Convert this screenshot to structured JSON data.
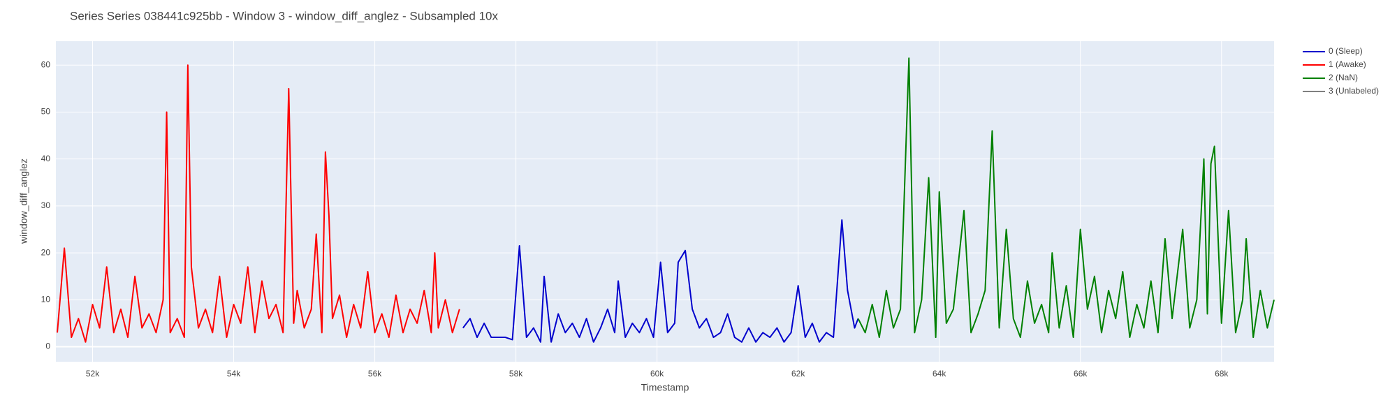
{
  "chart_data": {
    "type": "line",
    "title": "Series Series 038441c925bb - Window 3 - window_diff_anglez - Subsampled 10x",
    "x_label": "Timestamp",
    "y_label": "window_diff_anglez",
    "xlim": [
      51480,
      68745
    ],
    "ylim": [
      -3.2,
      65.1
    ],
    "xticks": [
      {
        "value": 52000,
        "label": "52k"
      },
      {
        "value": 54000,
        "label": "54k"
      },
      {
        "value": 56000,
        "label": "56k"
      },
      {
        "value": 58000,
        "label": "58k"
      },
      {
        "value": 60000,
        "label": "60k"
      },
      {
        "value": 62000,
        "label": "62k"
      },
      {
        "value": 64000,
        "label": "64k"
      },
      {
        "value": 66000,
        "label": "66k"
      },
      {
        "value": 68000,
        "label": "68k"
      }
    ],
    "yticks": [
      0,
      10,
      20,
      30,
      40,
      50,
      60
    ],
    "grid": true,
    "legend": "right",
    "series": [
      {
        "name": "0 (Sleep)",
        "color": "#0000cc",
        "x": [
          57250,
          57350,
          57450,
          57550,
          57650,
          57750,
          57850,
          57950,
          58050,
          58150,
          58250,
          58350,
          58400,
          58500,
          58600,
          58700,
          58800,
          58900,
          59000,
          59100,
          59200,
          59300,
          59400,
          59450,
          59550,
          59650,
          59750,
          59850,
          59950,
          60050,
          60150,
          60250,
          60300,
          60400,
          60500,
          60600,
          60700,
          60800,
          60900,
          61000,
          61100,
          61200,
          61300,
          61400,
          61500,
          61600,
          61700,
          61800,
          61900,
          62000,
          62100,
          62200,
          62300,
          62400,
          62500,
          62620,
          62700,
          62800,
          62850
        ],
        "values": [
          4,
          6,
          2,
          5,
          2,
          2,
          2,
          1.5,
          21.5,
          2,
          4,
          1,
          15,
          1,
          7,
          3,
          5,
          2,
          6,
          1,
          4,
          8,
          3,
          14,
          2,
          5,
          3,
          6,
          2,
          18,
          3,
          5,
          18,
          20.5,
          8,
          4,
          6,
          2,
          3,
          7,
          2,
          1,
          4,
          1,
          3,
          2,
          4,
          1,
          3,
          13,
          2,
          5,
          1,
          3,
          2,
          27,
          12,
          4,
          6
        ]
      },
      {
        "name": "1 (Awake)",
        "color": "#ff0000",
        "x": [
          51500,
          51600,
          51700,
          51800,
          51900,
          52000,
          52100,
          52200,
          52300,
          52400,
          52500,
          52600,
          52700,
          52800,
          52900,
          53000,
          53050,
          53100,
          53200,
          53300,
          53350,
          53400,
          53500,
          53600,
          53700,
          53800,
          53900,
          54000,
          54100,
          54200,
          54300,
          54400,
          54500,
          54600,
          54700,
          54780,
          54850,
          54900,
          55000,
          55100,
          55170,
          55250,
          55300,
          55350,
          55400,
          55500,
          55600,
          55700,
          55800,
          55900,
          56000,
          56100,
          56200,
          56300,
          56400,
          56500,
          56600,
          56700,
          56800,
          56850,
          56900,
          57000,
          57100,
          57200
        ],
        "values": [
          3,
          21,
          2,
          6,
          1,
          9,
          4,
          17,
          3,
          8,
          2,
          15,
          4,
          7,
          3,
          10,
          50,
          3,
          6,
          2,
          60,
          17,
          4,
          8,
          3,
          15,
          2,
          9,
          5,
          17,
          3,
          14,
          6,
          9,
          3,
          55,
          5,
          12,
          4,
          8,
          24,
          3,
          41.5,
          28,
          6,
          11,
          2,
          9,
          4,
          16,
          3,
          7,
          2,
          11,
          3,
          8,
          5,
          12,
          3,
          20,
          4,
          10,
          3,
          8
        ]
      },
      {
        "name": "2 (NaN)",
        "color": "#008000",
        "x": [
          62850,
          62950,
          63050,
          63150,
          63250,
          63350,
          63450,
          63570,
          63650,
          63750,
          63850,
          63950,
          64000,
          64100,
          64200,
          64350,
          64450,
          64550,
          64650,
          64750,
          64850,
          64950,
          65050,
          65150,
          65250,
          65350,
          65450,
          65550,
          65600,
          65700,
          65800,
          65900,
          66000,
          66100,
          66200,
          66300,
          66400,
          66500,
          66600,
          66700,
          66800,
          66900,
          67000,
          67100,
          67200,
          67300,
          67450,
          67550,
          67650,
          67750,
          67800,
          67850,
          67900,
          68000,
          68100,
          68200,
          68300,
          68350,
          68450,
          68550,
          68650,
          68745
        ],
        "values": [
          6,
          3,
          9,
          2,
          12,
          4,
          8,
          61.5,
          3,
          10,
          36,
          2,
          33,
          5,
          8,
          29,
          3,
          7,
          12,
          46,
          4,
          25,
          6,
          2,
          14,
          5,
          9,
          3,
          20,
          4,
          13,
          2,
          25,
          8,
          15,
          3,
          12,
          6,
          16,
          2,
          9,
          4,
          14,
          3,
          23,
          6,
          25,
          4,
          10,
          40,
          7,
          39,
          42.7,
          5,
          29,
          3,
          10,
          23,
          2,
          12,
          4,
          10
        ]
      },
      {
        "name": "3 (Unlabeled)",
        "color": "#808080",
        "x": [],
        "values": []
      }
    ]
  }
}
